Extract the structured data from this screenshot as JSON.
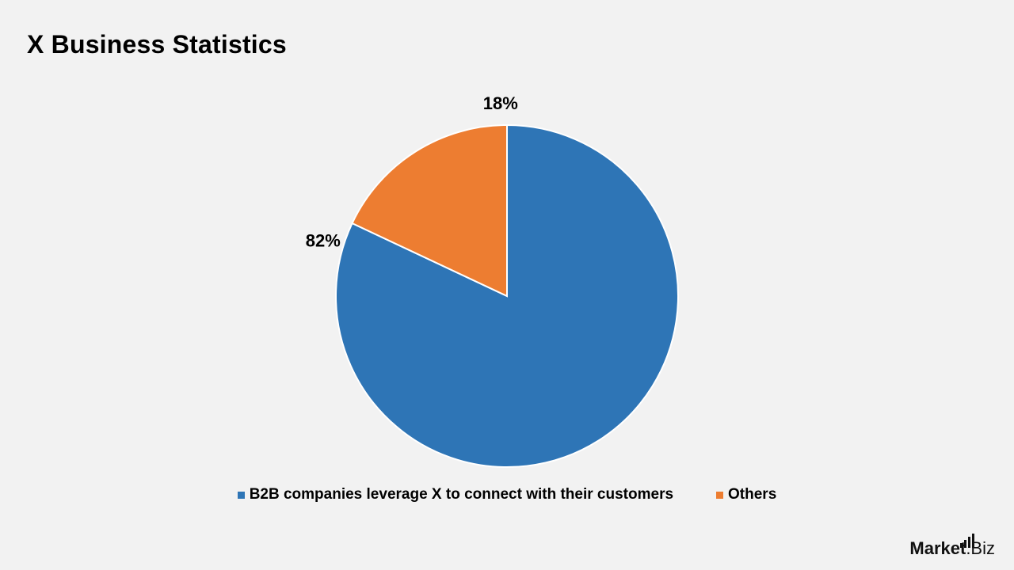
{
  "page": {
    "title": "X Business Statistics",
    "background": "#f2f2f2"
  },
  "chart_data": {
    "type": "pie",
    "title": "X Business Statistics",
    "categories": [
      "B2B companies leverage X to connect with their customers",
      "Others"
    ],
    "values": [
      82,
      18
    ],
    "value_labels": [
      "82%",
      "18%"
    ],
    "colors": [
      "#2e75b6",
      "#ed7d31"
    ],
    "start": "12 o'clock",
    "direction": "clockwise",
    "legend_position": "bottom"
  },
  "watermark": {
    "brand": "Market",
    "suffix": ".Biz"
  }
}
